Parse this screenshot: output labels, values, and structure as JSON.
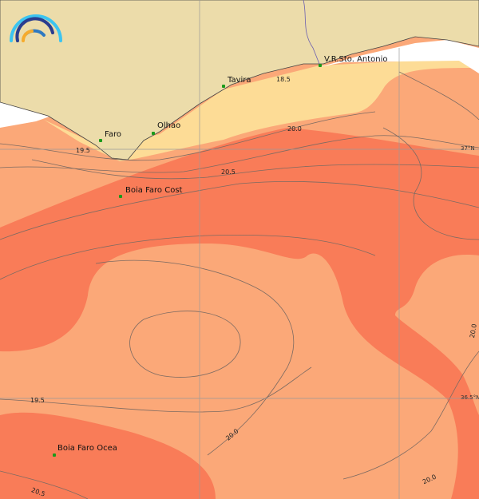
{
  "map": {
    "colors": {
      "land": "#ecdcaa",
      "no_data": "#ffffff",
      "sea_cool": "#fddc96",
      "sea_mid": "#fba878",
      "sea_warm": "#f97c58",
      "contour": "#7d6b62",
      "grid": "#9a9a9a",
      "station": "#1a9a1a"
    },
    "logo_icon": "rainbow-arcs-logo",
    "grid_labels": [
      "37°N",
      "36.5°N"
    ],
    "contour_labels": [
      "19.5",
      "18.5",
      "20.0",
      "20.5",
      "20.0",
      "19.5",
      "20.0",
      "20.5",
      "20.0"
    ],
    "stations": [
      {
        "name": "Faro"
      },
      {
        "name": "Olhao"
      },
      {
        "name": "Tavira"
      },
      {
        "name": "V.R.Sto. Antonio"
      },
      {
        "name": "Boia Faro Cost"
      },
      {
        "name": "Boia Faro Ocea"
      }
    ]
  }
}
